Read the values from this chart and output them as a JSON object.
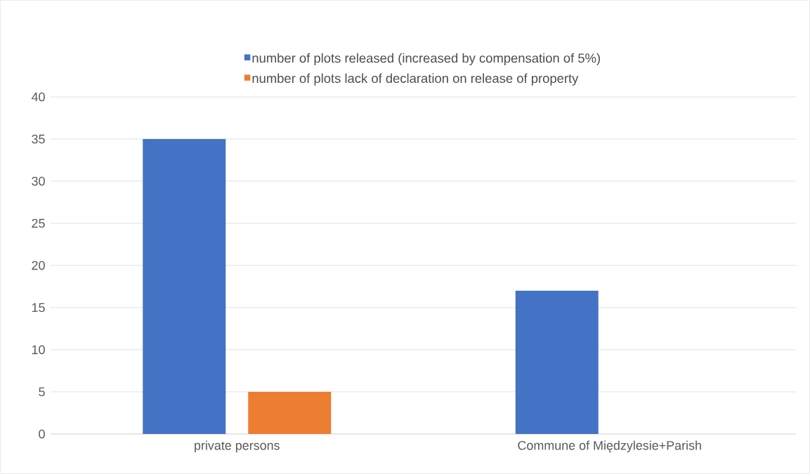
{
  "chart_data": {
    "type": "bar",
    "categories": [
      "private persons",
      "Commune of Międzylesie+Parish"
    ],
    "series": [
      {
        "name": "number of plots released (increased by compensation of 5%)",
        "color": "#4472c4",
        "values": [
          35,
          17
        ]
      },
      {
        "name": "number of plots lack of declaration on release of property",
        "color": "#ed7d31",
        "values": [
          5,
          0
        ]
      }
    ],
    "ylim": [
      0,
      40
    ],
    "yticks": [
      0,
      5,
      10,
      15,
      20,
      25,
      30,
      35,
      40
    ],
    "grid": "y",
    "legend": "top"
  }
}
